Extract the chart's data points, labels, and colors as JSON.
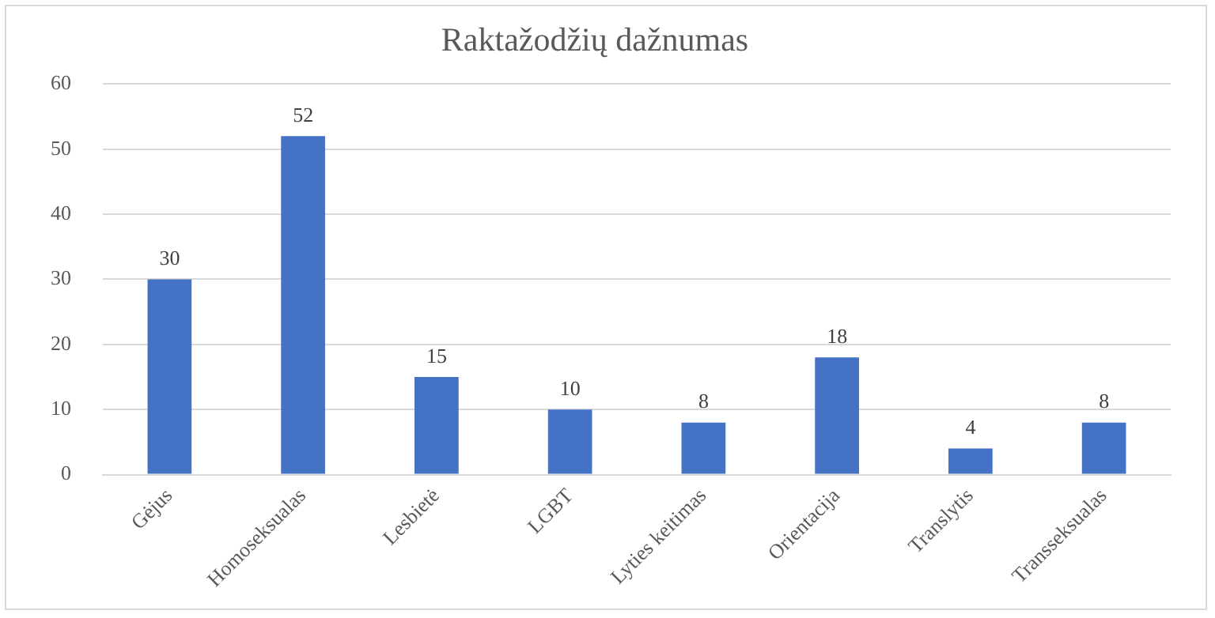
{
  "chart_data": {
    "type": "bar",
    "title": "Raktažodžių dažnumas",
    "categories": [
      "Gėjus",
      "Homoseksualas",
      "Lesbietė",
      "LGBT",
      "Lyties keitimas",
      "Orientacija",
      "Translytis",
      "Transseksualas"
    ],
    "values": [
      30,
      52,
      15,
      10,
      8,
      18,
      4,
      8
    ],
    "color": "#4472c4",
    "ylim": [
      0,
      60
    ],
    "yticks": [
      0,
      10,
      20,
      30,
      40,
      50,
      60
    ],
    "grid": "y",
    "data_labels": true
  }
}
